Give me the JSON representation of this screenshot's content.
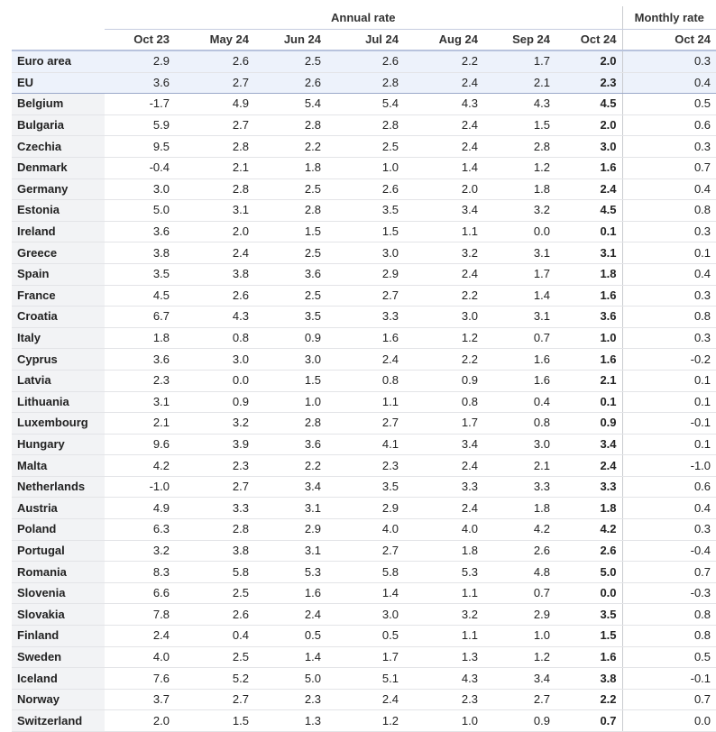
{
  "header": {
    "annual_group": "Annual rate",
    "monthly_group": "Monthly rate",
    "columns": [
      "Oct 23",
      "May 24",
      "Jun 24",
      "Jul 24",
      "Aug 24",
      "Sep 24",
      "Oct 24",
      "Oct 24"
    ]
  },
  "rows": [
    {
      "name": "Euro area",
      "values": [
        "2.9",
        "2.6",
        "2.5",
        "2.6",
        "2.2",
        "1.7",
        "2.0",
        "0.3"
      ]
    },
    {
      "name": "EU",
      "values": [
        "3.6",
        "2.7",
        "2.6",
        "2.8",
        "2.4",
        "2.1",
        "2.3",
        "0.4"
      ]
    },
    {
      "name": "Belgium",
      "values": [
        "-1.7",
        "4.9",
        "5.4",
        "5.4",
        "4.3",
        "4.3",
        "4.5",
        "0.5"
      ]
    },
    {
      "name": "Bulgaria",
      "values": [
        "5.9",
        "2.7",
        "2.8",
        "2.8",
        "2.4",
        "1.5",
        "2.0",
        "0.6"
      ]
    },
    {
      "name": "Czechia",
      "values": [
        "9.5",
        "2.8",
        "2.2",
        "2.5",
        "2.4",
        "2.8",
        "3.0",
        "0.3"
      ]
    },
    {
      "name": "Denmark",
      "values": [
        "-0.4",
        "2.1",
        "1.8",
        "1.0",
        "1.4",
        "1.2",
        "1.6",
        "0.7"
      ]
    },
    {
      "name": "Germany",
      "values": [
        "3.0",
        "2.8",
        "2.5",
        "2.6",
        "2.0",
        "1.8",
        "2.4",
        "0.4"
      ]
    },
    {
      "name": "Estonia",
      "values": [
        "5.0",
        "3.1",
        "2.8",
        "3.5",
        "3.4",
        "3.2",
        "4.5",
        "0.8"
      ]
    },
    {
      "name": "Ireland",
      "values": [
        "3.6",
        "2.0",
        "1.5",
        "1.5",
        "1.1",
        "0.0",
        "0.1",
        "0.3"
      ]
    },
    {
      "name": "Greece",
      "values": [
        "3.8",
        "2.4",
        "2.5",
        "3.0",
        "3.2",
        "3.1",
        "3.1",
        "0.1"
      ]
    },
    {
      "name": "Spain",
      "values": [
        "3.5",
        "3.8",
        "3.6",
        "2.9",
        "2.4",
        "1.7",
        "1.8",
        "0.4"
      ]
    },
    {
      "name": "France",
      "values": [
        "4.5",
        "2.6",
        "2.5",
        "2.7",
        "2.2",
        "1.4",
        "1.6",
        "0.3"
      ]
    },
    {
      "name": "Croatia",
      "values": [
        "6.7",
        "4.3",
        "3.5",
        "3.3",
        "3.0",
        "3.1",
        "3.6",
        "0.8"
      ]
    },
    {
      "name": "Italy",
      "values": [
        "1.8",
        "0.8",
        "0.9",
        "1.6",
        "1.2",
        "0.7",
        "1.0",
        "0.3"
      ]
    },
    {
      "name": "Cyprus",
      "values": [
        "3.6",
        "3.0",
        "3.0",
        "2.4",
        "2.2",
        "1.6",
        "1.6",
        "-0.2"
      ]
    },
    {
      "name": "Latvia",
      "values": [
        "2.3",
        "0.0",
        "1.5",
        "0.8",
        "0.9",
        "1.6",
        "2.1",
        "0.1"
      ]
    },
    {
      "name": "Lithuania",
      "values": [
        "3.1",
        "0.9",
        "1.0",
        "1.1",
        "0.8",
        "0.4",
        "0.1",
        "0.1"
      ]
    },
    {
      "name": "Luxembourg",
      "values": [
        "2.1",
        "3.2",
        "2.8",
        "2.7",
        "1.7",
        "0.8",
        "0.9",
        "-0.1"
      ]
    },
    {
      "name": "Hungary",
      "values": [
        "9.6",
        "3.9",
        "3.6",
        "4.1",
        "3.4",
        "3.0",
        "3.4",
        "0.1"
      ]
    },
    {
      "name": "Malta",
      "values": [
        "4.2",
        "2.3",
        "2.2",
        "2.3",
        "2.4",
        "2.1",
        "2.4",
        "-1.0"
      ]
    },
    {
      "name": "Netherlands",
      "values": [
        "-1.0",
        "2.7",
        "3.4",
        "3.5",
        "3.3",
        "3.3",
        "3.3",
        "0.6"
      ]
    },
    {
      "name": "Austria",
      "values": [
        "4.9",
        "3.3",
        "3.1",
        "2.9",
        "2.4",
        "1.8",
        "1.8",
        "0.4"
      ]
    },
    {
      "name": "Poland",
      "values": [
        "6.3",
        "2.8",
        "2.9",
        "4.0",
        "4.0",
        "4.2",
        "4.2",
        "0.3"
      ]
    },
    {
      "name": "Portugal",
      "values": [
        "3.2",
        "3.8",
        "3.1",
        "2.7",
        "1.8",
        "2.6",
        "2.6",
        "-0.4"
      ]
    },
    {
      "name": "Romania",
      "values": [
        "8.3",
        "5.8",
        "5.3",
        "5.8",
        "5.3",
        "4.8",
        "5.0",
        "0.7"
      ]
    },
    {
      "name": "Slovenia",
      "values": [
        "6.6",
        "2.5",
        "1.6",
        "1.4",
        "1.1",
        "0.7",
        "0.0",
        "-0.3"
      ]
    },
    {
      "name": "Slovakia",
      "values": [
        "7.8",
        "2.6",
        "2.4",
        "3.0",
        "3.2",
        "2.9",
        "3.5",
        "0.8"
      ]
    },
    {
      "name": "Finland",
      "values": [
        "2.4",
        "0.4",
        "0.5",
        "0.5",
        "1.1",
        "1.0",
        "1.5",
        "0.8"
      ]
    },
    {
      "name": "Sweden",
      "values": [
        "4.0",
        "2.5",
        "1.4",
        "1.7",
        "1.3",
        "1.2",
        "1.6",
        "0.5"
      ]
    },
    {
      "name": "Iceland",
      "values": [
        "7.6",
        "5.2",
        "5.0",
        "5.1",
        "4.3",
        "3.4",
        "3.8",
        "-0.1"
      ]
    },
    {
      "name": "Norway",
      "values": [
        "3.7",
        "2.7",
        "2.3",
        "2.4",
        "2.3",
        "2.7",
        "2.2",
        "0.7"
      ]
    },
    {
      "name": "Switzerland",
      "values": [
        "2.0",
        "1.5",
        "1.3",
        "1.2",
        "1.0",
        "0.9",
        "0.7",
        "0.0"
      ]
    }
  ],
  "colors": {
    "aggregate_row_bg": "#edf2fb",
    "label_column_bg": "#f2f3f5",
    "header_rule": "#b8c3dd"
  }
}
